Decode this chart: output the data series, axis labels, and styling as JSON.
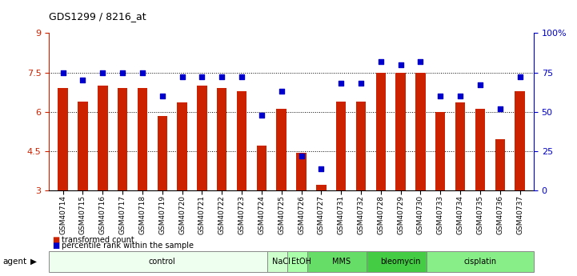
{
  "title": "GDS1299 / 8216_at",
  "samples": [
    "GSM40714",
    "GSM40715",
    "GSM40716",
    "GSM40717",
    "GSM40718",
    "GSM40719",
    "GSM40720",
    "GSM40721",
    "GSM40722",
    "GSM40723",
    "GSM40724",
    "GSM40725",
    "GSM40726",
    "GSM40727",
    "GSM40731",
    "GSM40732",
    "GSM40728",
    "GSM40729",
    "GSM40730",
    "GSM40733",
    "GSM40734",
    "GSM40735",
    "GSM40736",
    "GSM40737"
  ],
  "bar_values": [
    6.9,
    6.4,
    7.0,
    6.9,
    6.9,
    5.85,
    6.35,
    7.0,
    6.9,
    6.8,
    4.7,
    6.1,
    4.45,
    3.2,
    6.4,
    6.4,
    7.5,
    7.5,
    7.5,
    6.0,
    6.35,
    6.1,
    4.95,
    6.8
  ],
  "percentile_values": [
    75,
    70,
    75,
    75,
    75,
    60,
    72,
    72,
    72,
    72,
    48,
    63,
    22,
    14,
    68,
    68,
    82,
    80,
    82,
    60,
    60,
    67,
    52,
    72
  ],
  "bar_color": "#cc2200",
  "dot_color": "#0000cc",
  "ylim": [
    3,
    9
  ],
  "y2lim": [
    0,
    100
  ],
  "yticks": [
    3,
    4.5,
    6,
    7.5,
    9
  ],
  "ytick_labels": [
    "3",
    "4.5",
    "6",
    "7.5",
    "9"
  ],
  "y2ticks": [
    0,
    25,
    50,
    75,
    100
  ],
  "y2tick_labels": [
    "0",
    "25",
    "50",
    "75",
    "100%"
  ],
  "hlines": [
    4.5,
    6.0,
    7.5
  ],
  "agent_groups": [
    {
      "label": "control",
      "start": 0,
      "end": 11,
      "color": "#efffef"
    },
    {
      "label": "NaCl",
      "start": 11,
      "end": 12,
      "color": "#ccffcc"
    },
    {
      "label": "EtOH",
      "start": 12,
      "end": 13,
      "color": "#aaffaa"
    },
    {
      "label": "MMS",
      "start": 13,
      "end": 16,
      "color": "#66dd66"
    },
    {
      "label": "bleomycin",
      "start": 16,
      "end": 19,
      "color": "#44cc44"
    },
    {
      "label": "cisplatin",
      "start": 19,
      "end": 24,
      "color": "#88ee88"
    }
  ],
  "legend_bar_label": "transformed count",
  "legend_dot_label": "percentile rank within the sample",
  "bar_width": 0.5
}
